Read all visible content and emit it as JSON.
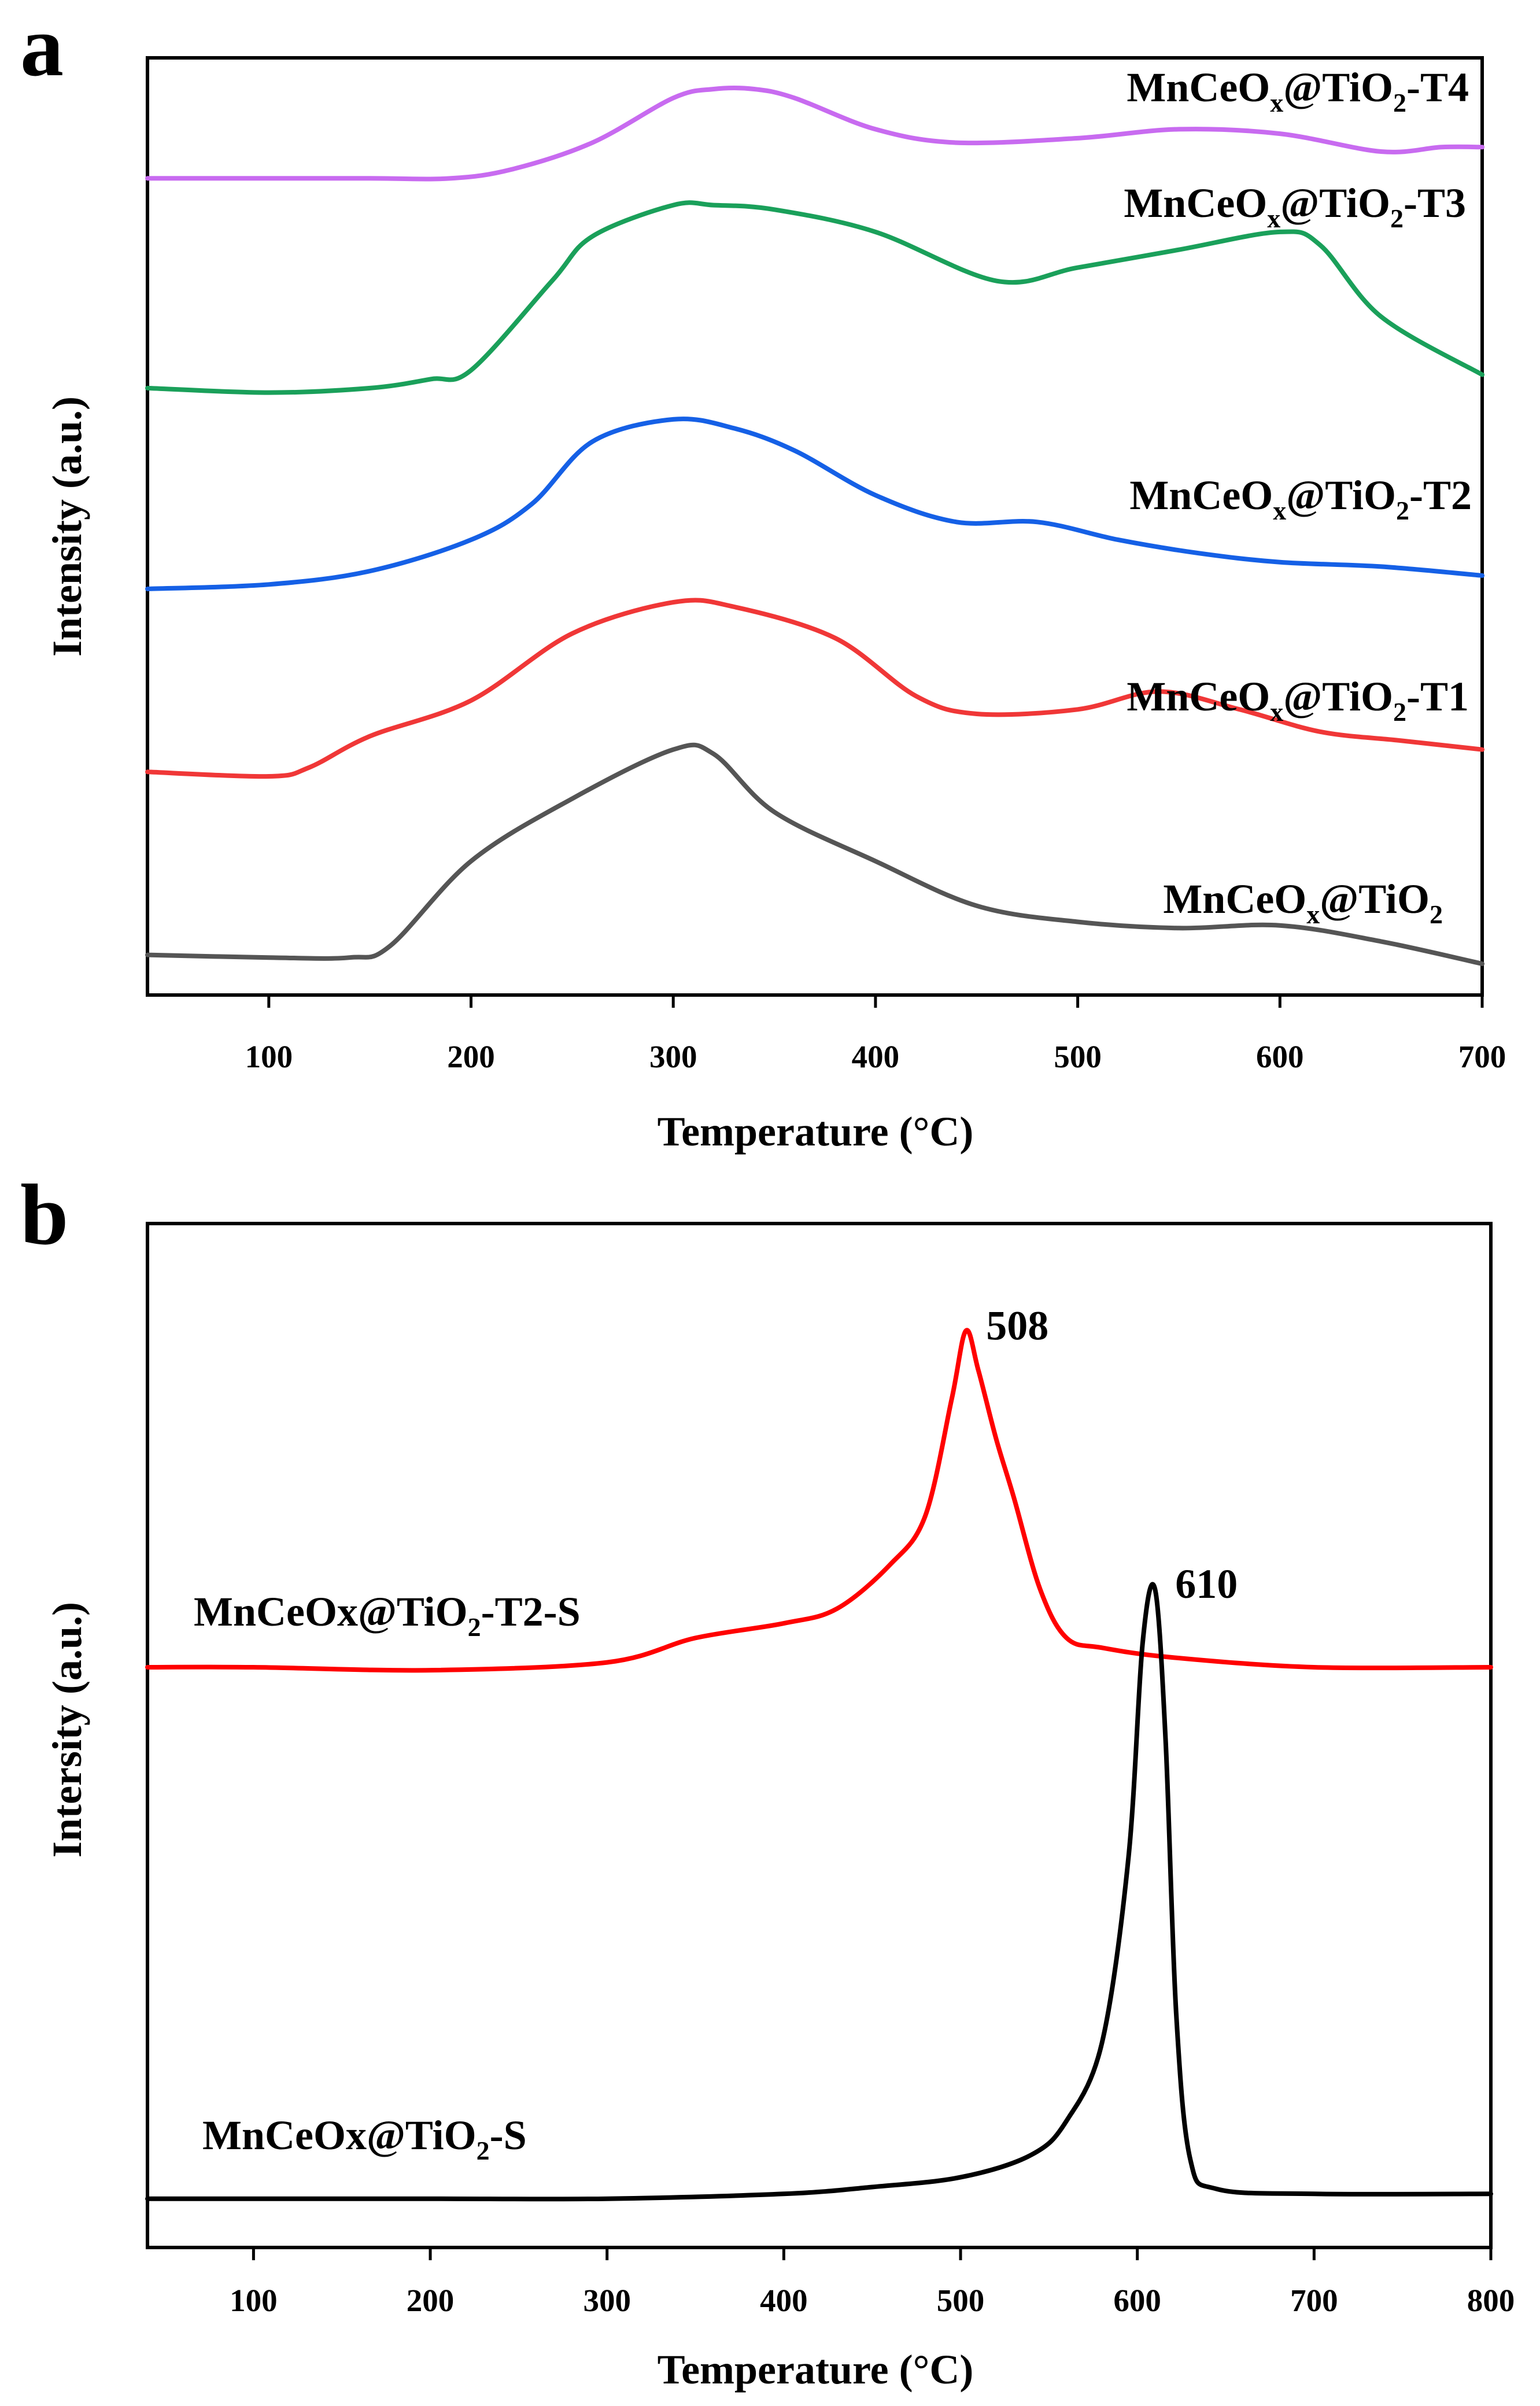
{
  "chart_data": [
    {
      "panel": "a",
      "type": "line",
      "xlabel": "Temperature (°C)",
      "ylabel": "Intensity (a.u.)",
      "xlim": [
        40,
        700
      ],
      "xticks": [
        100,
        200,
        300,
        400,
        500,
        600,
        700
      ],
      "yticks_shown": false,
      "series": [
        {
          "name": "MnCeOx@TiO2-T4",
          "label": {
            "base": "MnCeO",
            "sub1": "x",
            "mid": "@TiO",
            "sub2": "2",
            "suffix": "-T4"
          },
          "color": "#c86bf0",
          "y_units": "stacked offset (a.u.)",
          "x": [
            40,
            100,
            150,
            190,
            220,
            260,
            300,
            320,
            340,
            360,
            400,
            440,
            500,
            550,
            600,
            650,
            680,
            700
          ],
          "y": [
            9.15,
            9.15,
            9.15,
            9.15,
            9.25,
            9.55,
            10.05,
            10.15,
            10.15,
            10.05,
            9.7,
            9.55,
            9.6,
            9.7,
            9.65,
            9.45,
            9.5,
            9.5
          ]
        },
        {
          "name": "MnCeOx@TiO2-T3",
          "label": {
            "base": "MnCeO",
            "sub1": "x",
            "mid": "@TiO",
            "sub2": "2",
            "suffix": "-T3"
          },
          "color": "#1aa05a",
          "y_units": "stacked offset (a.u.)",
          "x": [
            40,
            100,
            150,
            180,
            200,
            240,
            260,
            300,
            320,
            350,
            400,
            460,
            500,
            550,
            600,
            620,
            650,
            700
          ],
          "y": [
            6.8,
            6.75,
            6.8,
            6.9,
            7.0,
            8.0,
            8.5,
            8.85,
            8.85,
            8.8,
            8.55,
            8.0,
            8.15,
            8.35,
            8.55,
            8.4,
            7.6,
            6.95
          ]
        },
        {
          "name": "MnCeOx@TiO2-T2",
          "label": {
            "base": "MnCeO",
            "sub1": "x",
            "mid": "@TiO",
            "sub2": "2",
            "suffix": "-T2"
          },
          "color": "#1560e6",
          "y_units": "stacked offset (a.u.)",
          "x": [
            40,
            100,
            150,
            200,
            230,
            260,
            300,
            330,
            360,
            400,
            440,
            480,
            520,
            560,
            600,
            650,
            700
          ],
          "y": [
            4.55,
            4.6,
            4.75,
            5.1,
            5.5,
            6.2,
            6.45,
            6.35,
            6.1,
            5.6,
            5.3,
            5.3,
            5.1,
            4.95,
            4.85,
            4.8,
            4.7
          ]
        },
        {
          "name": "MnCeOx@TiO2-T1",
          "label": {
            "base": "MnCeO",
            "sub1": "x",
            "mid": "@TiO",
            "sub2": "2",
            "suffix": "-T1"
          },
          "color": "#f03737",
          "y_units": "stacked offset (a.u.)",
          "x": [
            40,
            100,
            120,
            150,
            200,
            250,
            300,
            330,
            380,
            420,
            450,
            500,
            540,
            580,
            620,
            660,
            700
          ],
          "y": [
            2.5,
            2.45,
            2.55,
            2.9,
            3.3,
            4.05,
            4.4,
            4.35,
            4.0,
            3.35,
            3.15,
            3.2,
            3.4,
            3.2,
            2.95,
            2.85,
            2.75
          ]
        },
        {
          "name": "MnCeOx@TiO2",
          "label": {
            "base": "MnCeO",
            "sub1": "x",
            "mid": "@TiO",
            "sub2": "2",
            "suffix": ""
          },
          "color": "#555555",
          "y_units": "stacked offset (a.u.)",
          "x": [
            40,
            100,
            140,
            160,
            200,
            250,
            300,
            320,
            350,
            400,
            450,
            500,
            550,
            600,
            650,
            700
          ],
          "y": [
            0.45,
            0.42,
            0.42,
            0.55,
            1.5,
            2.2,
            2.75,
            2.7,
            2.05,
            1.5,
            1.0,
            0.82,
            0.75,
            0.78,
            0.6,
            0.35
          ]
        }
      ],
      "ylim": [
        0,
        10.5
      ]
    },
    {
      "panel": "b",
      "type": "line",
      "xlabel": "Temperature (°C)",
      "ylabel": "Intersity (a.u.)",
      "xlim": [
        40,
        800
      ],
      "xticks": [
        100,
        200,
        300,
        400,
        500,
        600,
        700,
        800
      ],
      "yticks_shown": false,
      "series": [
        {
          "name": "MnCeOx@TiO2-T2-S",
          "label": {
            "base": "MnCeOx@TiO",
            "sub1": "",
            "mid": "",
            "sub2": "2",
            "suffix": "-T2-S"
          },
          "color": "#ff0000",
          "y_units": "stacked offset (a.u.)",
          "x": [
            40,
            100,
            200,
            300,
            350,
            400,
            430,
            460,
            480,
            495,
            503,
            510,
            520,
            530,
            545,
            560,
            580,
            620,
            700,
            800
          ],
          "y": [
            5.95,
            5.95,
            5.92,
            6.0,
            6.25,
            6.4,
            6.55,
            7.0,
            7.5,
            8.7,
            9.4,
            9.0,
            8.3,
            7.7,
            6.75,
            6.25,
            6.15,
            6.05,
            5.95,
            5.95
          ],
          "peak": {
            "x": 508,
            "label": "508"
          }
        },
        {
          "name": "MnCeOx@TiO2-S",
          "label": {
            "base": "MnCeOx@TiO",
            "sub1": "",
            "mid": "",
            "sub2": "2",
            "suffix": "-S"
          },
          "color": "#000000",
          "y_units": "stacked offset (a.u.)",
          "x": [
            40,
            100,
            200,
            300,
            400,
            450,
            500,
            540,
            560,
            580,
            595,
            603,
            610,
            616,
            622,
            630,
            645,
            700,
            800
          ],
          "y": [
            0.5,
            0.5,
            0.5,
            0.5,
            0.55,
            0.62,
            0.72,
            0.95,
            1.3,
            2.1,
            4.0,
            6.2,
            6.75,
            5.2,
            2.4,
            0.9,
            0.6,
            0.55,
            0.55
          ],
          "peak": {
            "x": 610,
            "label": "610"
          }
        }
      ],
      "ylim": [
        0,
        10.5
      ]
    }
  ],
  "panel_letters": [
    "a",
    "b"
  ]
}
